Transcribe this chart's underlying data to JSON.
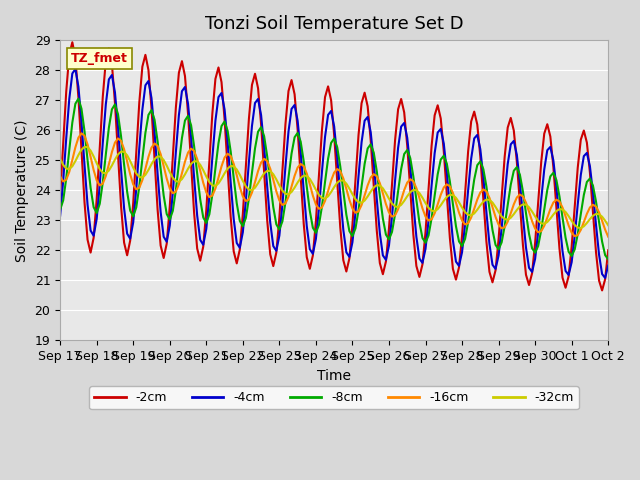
{
  "title": "Tonzi Soil Temperature Set D",
  "xlabel": "Time",
  "ylabel": "Soil Temperature (C)",
  "ylim": [
    19.0,
    29.0
  ],
  "yticks": [
    19.0,
    20.0,
    21.0,
    22.0,
    23.0,
    24.0,
    25.0,
    26.0,
    27.0,
    28.0,
    29.0
  ],
  "xtick_labels": [
    "Sep 17",
    "Sep 18",
    "Sep 19",
    "Sep 20",
    "Sep 21",
    "Sep 22",
    "Sep 23",
    "Sep 24",
    "Sep 25",
    "Sep 26",
    "Sep 27",
    "Sep 28",
    "Sep 29",
    "Sep 30",
    "Oct 1",
    "Oct 2"
  ],
  "legend_labels": [
    "-2cm",
    "-4cm",
    "-8cm",
    "-16cm",
    "-32cm"
  ],
  "line_colors": [
    "#cc0000",
    "#0000cc",
    "#00aa00",
    "#ff8800",
    "#cccc00"
  ],
  "line_widths": [
    1.5,
    1.5,
    1.5,
    1.5,
    1.5
  ],
  "label_box_color": "#ffffcc",
  "label_box_text": "TZ_fmet",
  "label_box_text_color": "#cc0000",
  "plot_bg_color": "#e8e8e8",
  "fig_bg_color": "#d8d8d8",
  "title_fontsize": 13,
  "axis_fontsize": 10,
  "tick_fontsize": 9
}
